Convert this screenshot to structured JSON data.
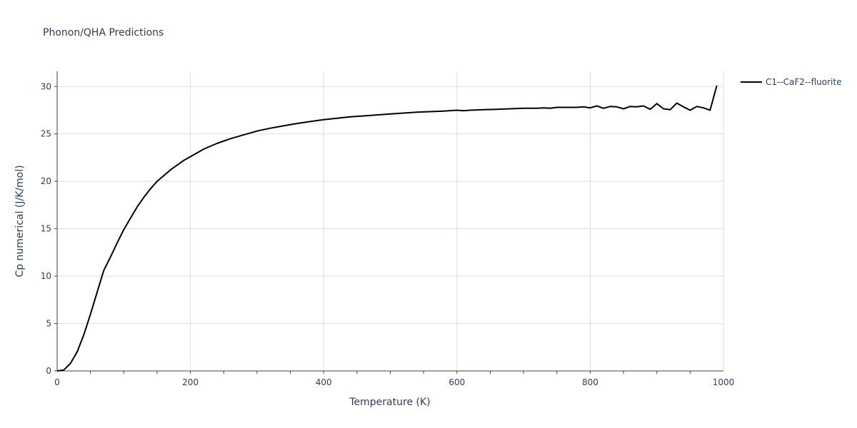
{
  "chart_data": {
    "type": "line",
    "title": "Phonon/QHA Predictions",
    "xlabel": "Temperature (K)",
    "ylabel": "Cp numerical (J/K/mol)",
    "xlim": [
      0,
      1000
    ],
    "ylim": [
      0,
      31.6
    ],
    "xticks": [
      0,
      200,
      400,
      600,
      800,
      1000
    ],
    "yticks": [
      0,
      5,
      10,
      15,
      20,
      25,
      30
    ],
    "grid": true,
    "legend_position": "top-right",
    "series": [
      {
        "name": "C1--CaF2--fluorite",
        "color": "#000000",
        "x": [
          0,
          10,
          20,
          30,
          40,
          50,
          60,
          70,
          80,
          90,
          100,
          110,
          120,
          130,
          140,
          150,
          160,
          170,
          180,
          190,
          200,
          220,
          240,
          260,
          280,
          300,
          320,
          340,
          360,
          380,
          400,
          420,
          440,
          460,
          480,
          500,
          520,
          540,
          560,
          580,
          600,
          610,
          620,
          640,
          660,
          680,
          700,
          720,
          730,
          740,
          750,
          760,
          780,
          790,
          800,
          810,
          820,
          830,
          840,
          850,
          860,
          870,
          880,
          890,
          900,
          910,
          920,
          930,
          940,
          950,
          960,
          970,
          980,
          990
        ],
        "y": [
          0,
          0.1,
          0.8,
          2.0,
          3.8,
          6.0,
          8.3,
          10.6,
          12.0,
          13.5,
          14.9,
          16.1,
          17.3,
          18.3,
          19.2,
          20.0,
          20.6,
          21.2,
          21.7,
          22.2,
          22.6,
          23.4,
          24.0,
          24.5,
          24.9,
          25.3,
          25.6,
          25.85,
          26.1,
          26.3,
          26.5,
          26.65,
          26.8,
          26.9,
          27.0,
          27.1,
          27.2,
          27.3,
          27.35,
          27.4,
          27.5,
          27.45,
          27.5,
          27.55,
          27.6,
          27.65,
          27.7,
          27.7,
          27.75,
          27.7,
          27.8,
          27.8,
          27.8,
          27.85,
          27.75,
          27.95,
          27.7,
          27.9,
          27.85,
          27.65,
          27.9,
          27.85,
          27.95,
          27.6,
          28.2,
          27.65,
          27.55,
          28.25,
          27.85,
          27.5,
          27.9,
          27.75,
          27.5,
          30.1
        ]
      }
    ]
  }
}
